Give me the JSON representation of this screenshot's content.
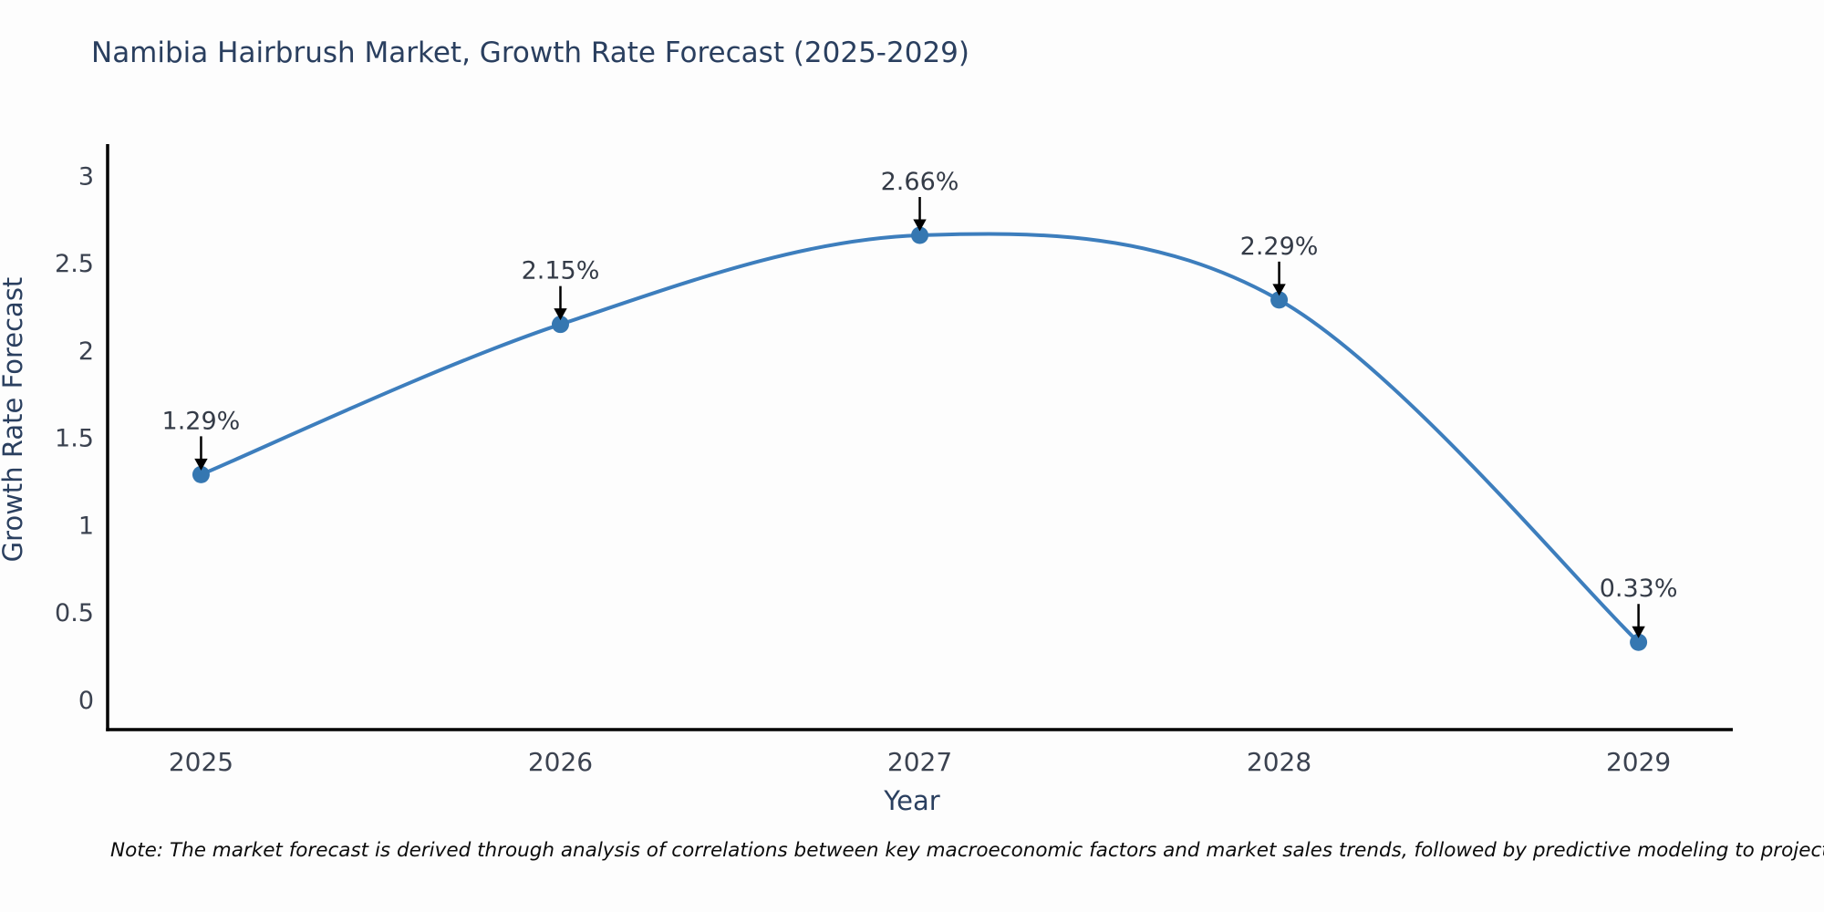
{
  "header": {
    "title": "Namibia Hairbrush Market, Growth Rate Forecast (2025-2029)"
  },
  "chart_data": {
    "type": "line",
    "title": "Namibia Hairbrush Market, Growth Rate Forecast (2025-2029)",
    "xlabel": "Year",
    "ylabel": "Growth Rate Forecast",
    "x": [
      2025,
      2026,
      2027,
      2028,
      2029
    ],
    "values": [
      1.29,
      2.15,
      2.66,
      2.29,
      0.33
    ],
    "point_labels": [
      "1.29%",
      "2.15%",
      "2.66%",
      "2.29%",
      "0.33%"
    ],
    "xtick_labels": [
      "2025",
      "2026",
      "2027",
      "2028",
      "2029"
    ],
    "ytick_values": [
      0,
      0.5,
      1,
      1.5,
      2,
      2.5,
      3
    ],
    "ytick_labels": [
      "0",
      "0.5",
      "1",
      "1.5",
      "2",
      "2.5",
      "3"
    ],
    "xlim": [
      2024.74,
      2029.27
    ],
    "ylim": [
      -0.17,
      3.18
    ],
    "grid": false,
    "legend_position": "none",
    "line_shape": "spline",
    "colors": {
      "line": "#3d7ebd",
      "marker": "#3577b1",
      "axis": "#000000",
      "title_text": "#2a3f5f",
      "annotation_arrow": "#000000"
    }
  },
  "footnote": {
    "text": "Note: The market forecast is derived through analysis of correlations between key macroeconomic factors and market sales trends, followed by predictive modeling to project future sales"
  }
}
